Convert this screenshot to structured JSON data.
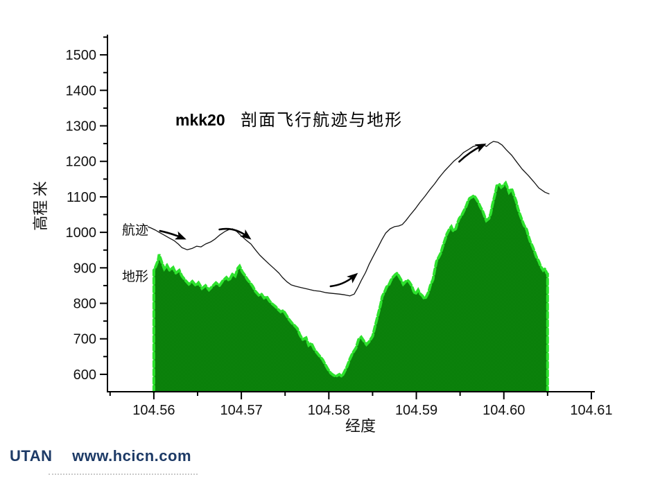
{
  "footer": {
    "brand": "UTAN",
    "url": "www.hcicn.com",
    "color": "#1d3a66"
  },
  "chart_data": {
    "type": "area+line",
    "title_prefix": "mkk20",
    "title": "剖面飞行航迹与地形",
    "xlabel": "经度",
    "ylabel": "高程 米",
    "xlim": [
      104.5547,
      104.6104
    ],
    "ylim": [
      551,
      1551
    ],
    "grid": false,
    "x_major_ticks": [
      104.56,
      104.57,
      104.58,
      104.59,
      104.6,
      104.61
    ],
    "x_major_labels": [
      "104.56",
      "104.57",
      "104.58",
      "104.59",
      "104.60",
      "104.61"
    ],
    "x_minor_ticks": [
      104.555,
      104.565,
      104.575,
      104.585,
      104.595,
      104.605
    ],
    "y_major_ticks": [
      600,
      700,
      800,
      900,
      1000,
      1100,
      1200,
      1300,
      1400,
      1500
    ],
    "y_minor_ticks": [
      650,
      750,
      850,
      950,
      1050,
      1150,
      1250,
      1350,
      1450,
      1550
    ],
    "colors": {
      "terrain_fill": "#077c07",
      "terrain_fill_alt": "#0e850e",
      "terrain_edge": "#2ee22e",
      "track_line": "#111111"
    },
    "series": [
      {
        "name": "航迹",
        "type": "line",
        "points": [
          [
            104.5593,
            1016
          ],
          [
            104.5597,
            1012
          ],
          [
            104.5602,
            1006
          ],
          [
            104.5606,
            1000
          ],
          [
            104.5612,
            992
          ],
          [
            104.5617,
            985
          ],
          [
            104.5623,
            977
          ],
          [
            104.5628,
            967
          ],
          [
            104.5632,
            957
          ],
          [
            104.5638,
            951
          ],
          [
            104.5644,
            955
          ],
          [
            104.5649,
            961
          ],
          [
            104.5654,
            959
          ],
          [
            104.5659,
            967
          ],
          [
            104.5665,
            973
          ],
          [
            104.567,
            981
          ],
          [
            104.5675,
            992
          ],
          [
            104.5681,
            1002
          ],
          [
            104.5686,
            1008
          ],
          [
            104.569,
            1010
          ],
          [
            104.5695,
            1002
          ],
          [
            104.57,
            990
          ],
          [
            104.5705,
            979
          ],
          [
            104.5711,
            967
          ],
          [
            104.5716,
            951
          ],
          [
            104.5721,
            936
          ],
          [
            104.5726,
            924
          ],
          [
            104.5732,
            910
          ],
          [
            104.5737,
            899
          ],
          [
            104.5743,
            885
          ],
          [
            104.5747,
            873
          ],
          [
            104.5752,
            861
          ],
          [
            104.5757,
            852
          ],
          [
            104.5762,
            848
          ],
          [
            104.5769,
            844
          ],
          [
            104.5776,
            840
          ],
          [
            104.5783,
            836
          ],
          [
            104.579,
            834
          ],
          [
            104.5797,
            830
          ],
          [
            104.5804,
            828
          ],
          [
            104.5812,
            826
          ],
          [
            104.5818,
            824
          ],
          [
            104.5824,
            821
          ],
          [
            104.5829,
            826
          ],
          [
            104.5833,
            844
          ],
          [
            104.5837,
            864
          ],
          [
            104.5842,
            887
          ],
          [
            104.5846,
            910
          ],
          [
            104.5851,
            934
          ],
          [
            104.5856,
            957
          ],
          [
            104.5861,
            981
          ],
          [
            104.5865,
            998
          ],
          [
            104.587,
            1010
          ],
          [
            104.5875,
            1016
          ],
          [
            104.588,
            1018
          ],
          [
            104.5884,
            1022
          ],
          [
            104.5888,
            1033
          ],
          [
            104.5893,
            1049
          ],
          [
            104.5899,
            1067
          ],
          [
            104.5904,
            1084
          ],
          [
            104.591,
            1102
          ],
          [
            104.5915,
            1119
          ],
          [
            104.5921,
            1137
          ],
          [
            104.5926,
            1154
          ],
          [
            104.5932,
            1172
          ],
          [
            104.5938,
            1188
          ],
          [
            104.5943,
            1201
          ],
          [
            104.5949,
            1213
          ],
          [
            104.5954,
            1225
          ],
          [
            104.596,
            1234
          ],
          [
            104.5965,
            1242
          ],
          [
            104.5971,
            1246
          ],
          [
            104.5976,
            1248
          ],
          [
            104.598,
            1242
          ],
          [
            104.5984,
            1250
          ],
          [
            104.5988,
            1256
          ],
          [
            104.5993,
            1254
          ],
          [
            104.5998,
            1246
          ],
          [
            104.6003,
            1232
          ],
          [
            104.6009,
            1217
          ],
          [
            104.6015,
            1197
          ],
          [
            104.6021,
            1178
          ],
          [
            104.6028,
            1160
          ],
          [
            104.6034,
            1143
          ],
          [
            104.604,
            1125
          ],
          [
            104.6047,
            1113
          ],
          [
            104.6052,
            1108
          ]
        ]
      },
      {
        "name": "地形",
        "type": "area",
        "points": [
          [
            104.56,
            893
          ],
          [
            104.5602,
            903
          ],
          [
            104.5605,
            922
          ],
          [
            104.5606,
            938
          ],
          [
            104.5609,
            916
          ],
          [
            104.5612,
            897
          ],
          [
            104.5615,
            907
          ],
          [
            104.5618,
            893
          ],
          [
            104.5622,
            901
          ],
          [
            104.5625,
            885
          ],
          [
            104.5629,
            893
          ],
          [
            104.5632,
            877
          ],
          [
            104.5636,
            865
          ],
          [
            104.564,
            854
          ],
          [
            104.5644,
            862
          ],
          [
            104.5648,
            850
          ],
          [
            104.5651,
            858
          ],
          [
            104.5655,
            842
          ],
          [
            104.5659,
            850
          ],
          [
            104.5663,
            838
          ],
          [
            104.5667,
            848
          ],
          [
            104.5671,
            858
          ],
          [
            104.5675,
            850
          ],
          [
            104.5679,
            864
          ],
          [
            104.5683,
            873
          ],
          [
            104.5686,
            864
          ],
          [
            104.569,
            883
          ],
          [
            104.5693,
            877
          ],
          [
            104.5696,
            899
          ],
          [
            104.5698,
            905
          ],
          [
            104.5701,
            889
          ],
          [
            104.5704,
            879
          ],
          [
            104.5707,
            867
          ],
          [
            104.571,
            858
          ],
          [
            104.5713,
            848
          ],
          [
            104.5716,
            834
          ],
          [
            104.572,
            823
          ],
          [
            104.5723,
            826
          ],
          [
            104.5726,
            815
          ],
          [
            104.5729,
            819
          ],
          [
            104.5732,
            807
          ],
          [
            104.5735,
            799
          ],
          [
            104.5739,
            791
          ],
          [
            104.5742,
            783
          ],
          [
            104.5745,
            776
          ],
          [
            104.5748,
            780
          ],
          [
            104.5751,
            768
          ],
          [
            104.5754,
            756
          ],
          [
            104.5758,
            744
          ],
          [
            104.5761,
            737
          ],
          [
            104.5764,
            729
          ],
          [
            104.5767,
            711
          ],
          [
            104.577,
            698
          ],
          [
            104.5774,
            703
          ],
          [
            104.5777,
            682
          ],
          [
            104.578,
            688
          ],
          [
            104.5783,
            672
          ],
          [
            104.5786,
            662
          ],
          [
            104.5789,
            653
          ],
          [
            104.5793,
            641
          ],
          [
            104.5796,
            627
          ],
          [
            104.5799,
            614
          ],
          [
            104.5802,
            604
          ],
          [
            104.5805,
            598
          ],
          [
            104.5808,
            594
          ],
          [
            104.5812,
            600
          ],
          [
            104.5815,
            594
          ],
          [
            104.5818,
            608
          ],
          [
            104.5821,
            623
          ],
          [
            104.5824,
            643
          ],
          [
            104.5827,
            659
          ],
          [
            104.5831,
            674
          ],
          [
            104.5834,
            698
          ],
          [
            104.5837,
            705
          ],
          [
            104.584,
            694
          ],
          [
            104.5843,
            684
          ],
          [
            104.5846,
            692
          ],
          [
            104.585,
            707
          ],
          [
            104.5853,
            737
          ],
          [
            104.5856,
            766
          ],
          [
            104.5859,
            795
          ],
          [
            104.5861,
            819
          ],
          [
            104.5864,
            834
          ],
          [
            104.5866,
            846
          ],
          [
            104.5869,
            854
          ],
          [
            104.5871,
            865
          ],
          [
            104.5873,
            873
          ],
          [
            104.5876,
            881
          ],
          [
            104.5878,
            885
          ],
          [
            104.588,
            877
          ],
          [
            104.5883,
            864
          ],
          [
            104.5885,
            854
          ],
          [
            104.5888,
            862
          ],
          [
            104.589,
            865
          ],
          [
            104.5892,
            860
          ],
          [
            104.5895,
            848
          ],
          [
            104.5897,
            834
          ],
          [
            104.5899,
            826
          ],
          [
            104.5902,
            838
          ],
          [
            104.5904,
            828
          ],
          [
            104.5907,
            821
          ],
          [
            104.5909,
            813
          ],
          [
            104.5911,
            817
          ],
          [
            104.5914,
            832
          ],
          [
            104.5916,
            850
          ],
          [
            104.5919,
            867
          ],
          [
            104.5921,
            893
          ],
          [
            104.5923,
            918
          ],
          [
            104.5926,
            932
          ],
          [
            104.5928,
            942
          ],
          [
            104.593,
            959
          ],
          [
            104.5933,
            981
          ],
          [
            104.5935,
            996
          ],
          [
            104.5938,
            1010
          ],
          [
            104.594,
            1016
          ],
          [
            104.5942,
            1004
          ],
          [
            104.5945,
            1010
          ],
          [
            104.5947,
            1026
          ],
          [
            104.5949,
            1039
          ],
          [
            104.5952,
            1049
          ],
          [
            104.5954,
            1059
          ],
          [
            104.5957,
            1074
          ],
          [
            104.5959,
            1088
          ],
          [
            104.5961,
            1096
          ],
          [
            104.5964,
            1100
          ],
          [
            104.5966,
            1104
          ],
          [
            104.5968,
            1096
          ],
          [
            104.5971,
            1084
          ],
          [
            104.5973,
            1072
          ],
          [
            104.5976,
            1059
          ],
          [
            104.5978,
            1045
          ],
          [
            104.598,
            1033
          ],
          [
            104.5983,
            1039
          ],
          [
            104.5985,
            1053
          ],
          [
            104.5987,
            1078
          ],
          [
            104.599,
            1108
          ],
          [
            104.5992,
            1131
          ],
          [
            104.5995,
            1135
          ],
          [
            104.5997,
            1127
          ],
          [
            104.5999,
            1131
          ],
          [
            104.6002,
            1139
          ],
          [
            104.6004,
            1127
          ],
          [
            104.6006,
            1113
          ],
          [
            104.6009,
            1123
          ],
          [
            104.6011,
            1108
          ],
          [
            104.6014,
            1088
          ],
          [
            104.6016,
            1068
          ],
          [
            104.6018,
            1053
          ],
          [
            104.6021,
            1033
          ],
          [
            104.6023,
            1020
          ],
          [
            104.6026,
            1008
          ],
          [
            104.6028,
            990
          ],
          [
            104.603,
            975
          ],
          [
            104.6033,
            959
          ],
          [
            104.6035,
            946
          ],
          [
            104.6037,
            932
          ],
          [
            104.604,
            918
          ],
          [
            104.6042,
            905
          ],
          [
            104.6045,
            893
          ],
          [
            104.6047,
            897
          ],
          [
            104.6049,
            885
          ],
          [
            104.605,
            883
          ]
        ]
      }
    ],
    "annotations": {
      "series_labels": [
        {
          "text": "航迹",
          "lon": 104.5563,
          "elev": 1010
        },
        {
          "text": "地形",
          "lon": 104.5563,
          "elev": 880
        }
      ],
      "arrows": [
        {
          "tail": [
            104.5607,
            1004
          ],
          "mid": [
            104.5619,
            998
          ],
          "head": [
            104.5632,
            985
          ]
        },
        {
          "tail": [
            104.5675,
            1008
          ],
          "mid": [
            104.5692,
            1016
          ],
          "head": [
            104.5707,
            988
          ]
        },
        {
          "tail": [
            104.5802,
            848
          ],
          "mid": [
            104.5817,
            852
          ],
          "head": [
            104.5829,
            877
          ]
        },
        {
          "tail": [
            104.5949,
            1199
          ],
          "mid": [
            104.5961,
            1227
          ],
          "head": [
            104.5975,
            1244
          ]
        }
      ]
    }
  }
}
